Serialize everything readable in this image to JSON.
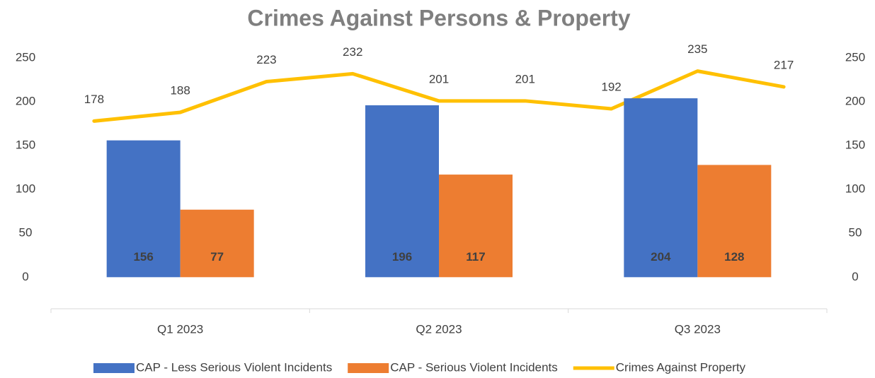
{
  "chart_data": [
    {
      "type": "bar",
      "title": "Crimes Against Persons & Property",
      "categories": [
        "Q1 2023",
        "Q2 2023",
        "Q3 2023"
      ],
      "series": [
        {
          "name": "CAP - Less Serious Violent Incidents",
          "color": "#4472c4",
          "values": [
            156,
            196,
            204
          ]
        },
        {
          "name": "CAP - Serious Violent Incidents",
          "color": "#ed7d31",
          "values": [
            77,
            117,
            128
          ]
        }
      ],
      "ylim": [
        -36,
        250
      ],
      "yticks": [
        0,
        50,
        100,
        150,
        200,
        250
      ]
    },
    {
      "type": "line",
      "categories": [
        null,
        null,
        null,
        null,
        null,
        null,
        null,
        null,
        null
      ],
      "series": [
        {
          "name": "Crimes Against Property",
          "color": "#ffc000",
          "axis": "y2",
          "values": [
            178,
            188,
            223,
            232,
            201,
            201,
            192,
            235,
            217
          ]
        }
      ],
      "y2lim": [
        -36,
        250
      ],
      "y2ticks": [
        0,
        50,
        100,
        150,
        200,
        250
      ]
    }
  ]
}
